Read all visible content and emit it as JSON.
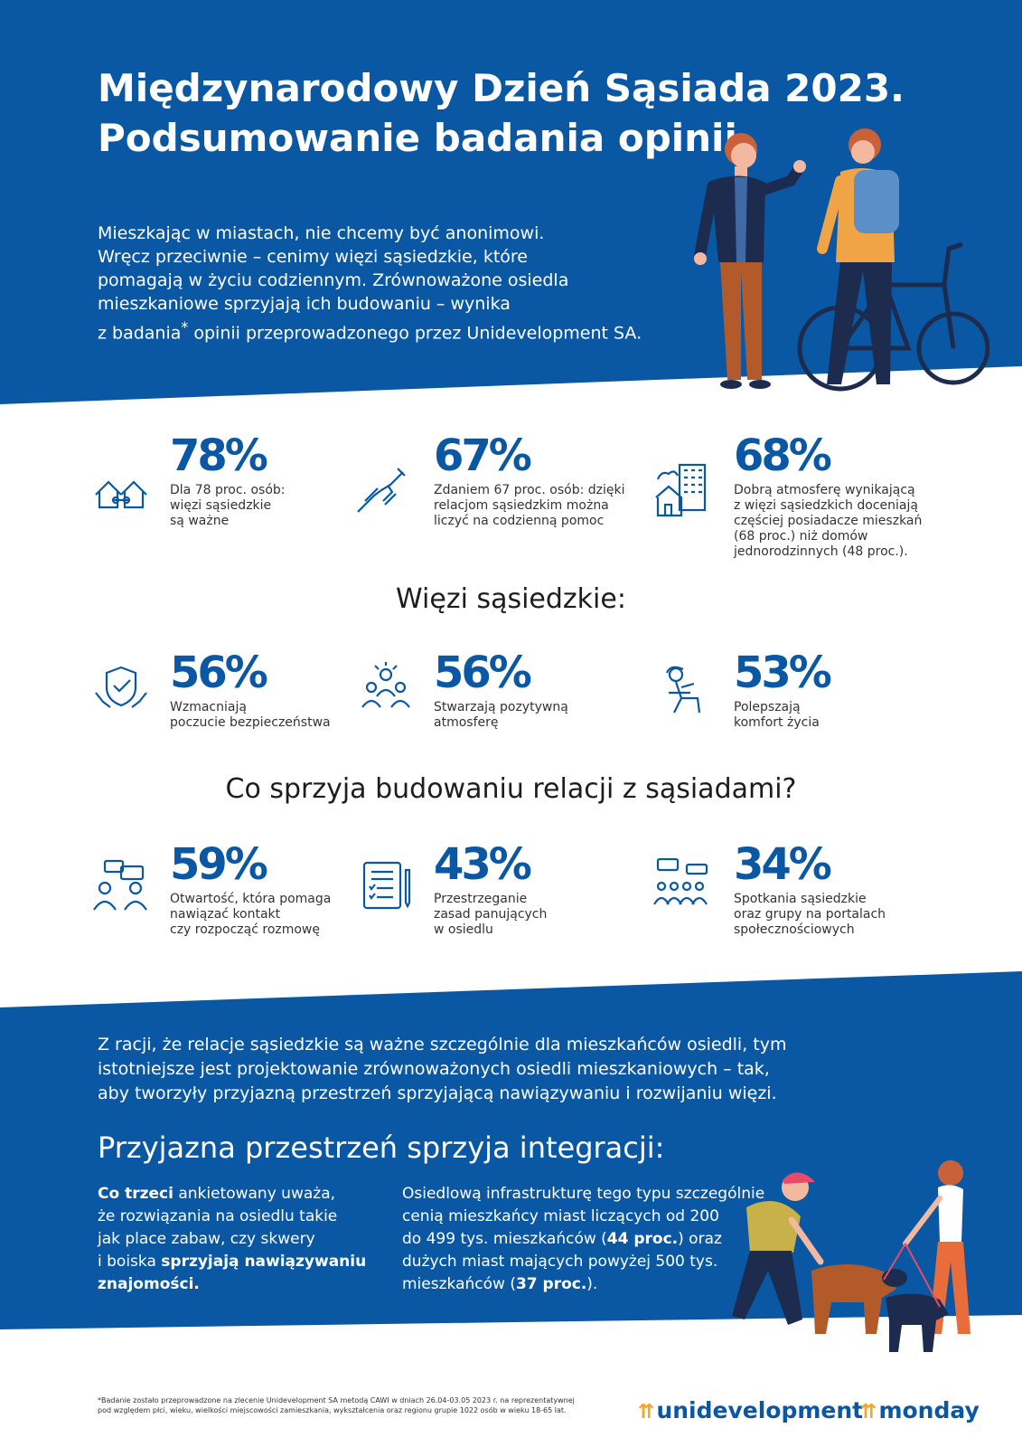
{
  "colors": {
    "blue": "#0a58a4",
    "accent": "#f5a623"
  },
  "header": {
    "title_line1": "Międzynarodowy Dzień Sąsiada 2023.",
    "title_line2": "Podsumowanie badania opinii"
  },
  "intro": {
    "line1": "Mieszkając w miastach, nie chcemy być anonimowi.",
    "line2": "Wręcz przeciwnie – cenimy więzi sąsiedzkie, które",
    "line3": "pomagają w życiu codziennym. Zrównoważone osiedla",
    "line4": "mieszkaniowe sprzyjają ich budowaniu – wynika",
    "line5_pre": "z badania",
    "line5_star": "*",
    "line5_post": " opinii przeprowadzonego przez Unidevelopment SA."
  },
  "top_stats": [
    {
      "icon": "houses-icon",
      "pct": "78%",
      "lines": [
        "Dla 78 proc. osób:",
        "więzi sąsiedzkie",
        "są ważne"
      ]
    },
    {
      "icon": "helping-hands-icon",
      "pct": "67%",
      "lines": [
        "Zdaniem 67 proc. osób: dzięki",
        "relacjom sąsiedzkim można",
        "liczyć na codzienną pomoc"
      ]
    },
    {
      "icon": "apartment-house-icon",
      "pct": "68%",
      "lines": [
        "Dobrą atmosferę wynikającą",
        "z więzi sąsiedzkich doceniają",
        "częściej posiadacze mieszkań",
        "(68 proc.) niż domów",
        "jednorodzinnych (48 proc.)."
      ]
    }
  ],
  "section1": {
    "heading": "Więzi sąsiedzkie:",
    "stats": [
      {
        "icon": "shield-hands-icon",
        "pct": "56%",
        "lines": [
          "Wzmacniają",
          "poczucie bezpieczeństwa"
        ]
      },
      {
        "icon": "group-people-icon",
        "pct": "56%",
        "lines": [
          "Stwarzają pozytywną",
          "atmosferę"
        ]
      },
      {
        "icon": "relaxing-person-icon",
        "pct": "53%",
        "lines": [
          "Polepszają",
          "komfort życia"
        ]
      }
    ]
  },
  "section2": {
    "heading": "Co sprzyja budowaniu relacji z sąsiadami?",
    "stats": [
      {
        "icon": "conversation-icon",
        "pct": "59%",
        "lines": [
          "Otwartość, która pomaga",
          "nawiązać kontakt",
          "czy rozpocząć rozmowę"
        ]
      },
      {
        "icon": "rules-document-icon",
        "pct": "43%",
        "lines": [
          "Przestrzeganie",
          "zasad panujących",
          "w osiedlu"
        ]
      },
      {
        "icon": "meeting-icon",
        "pct": "34%",
        "lines": [
          "Spotkania sąsiedzkie",
          "oraz grupy na portalach",
          "społecznościowych"
        ]
      }
    ]
  },
  "closing": {
    "line1": "Z racji, że relacje sąsiedzkie są ważne szczególnie dla mieszkańców osiedli, tym",
    "line2": "istotniejsze jest projektowanie zrównoważonych osiedli mieszkaniowych – tak,",
    "line3": "aby tworzyły przyjazną przestrzeń sprzyjającą nawiązywaniu i rozwijaniu więzi."
  },
  "integration": {
    "heading": "Przyjazna przestrzeń sprzyja integracji:",
    "left": {
      "b1": "Co trzeci",
      "t1": " ankietowany uważa,",
      "t2": "że rozwiązania na osiedlu takie",
      "t3": "jak place zabaw, czy skwery",
      "t4": "i boiska ",
      "b2": "sprzyjają nawiązywaniu",
      "b3": "znajomości."
    },
    "right": {
      "t1": "Osiedlową infrastrukturę tego typu szczególnie",
      "t2": "cenią mieszkańcy miast liczących od 200",
      "t3a": "do 499 tys. mieszkańców (",
      "b1": "44 proc.",
      "t3b": ") oraz",
      "t4": "dużych miast mających powyżej 500 tys.",
      "t5a": "mieszkańców (",
      "b2": "37 proc.",
      "t5b": ")."
    }
  },
  "footnote": {
    "line1": "*Badanie zostało przeprowadzone na zlecenie Unidevelopment SA metodą CAWI w dniach 26.04-03.05 2023 r. na reprezentatywnej",
    "line2": "pod względem płci, wieku, wielkości miejscowości zamieszkania, wykształcenia oraz regionu grupie 1022 osób w wieku 18-65 lat."
  },
  "logos": {
    "unidevelopment": "unidevelopment",
    "monday": "monday"
  }
}
